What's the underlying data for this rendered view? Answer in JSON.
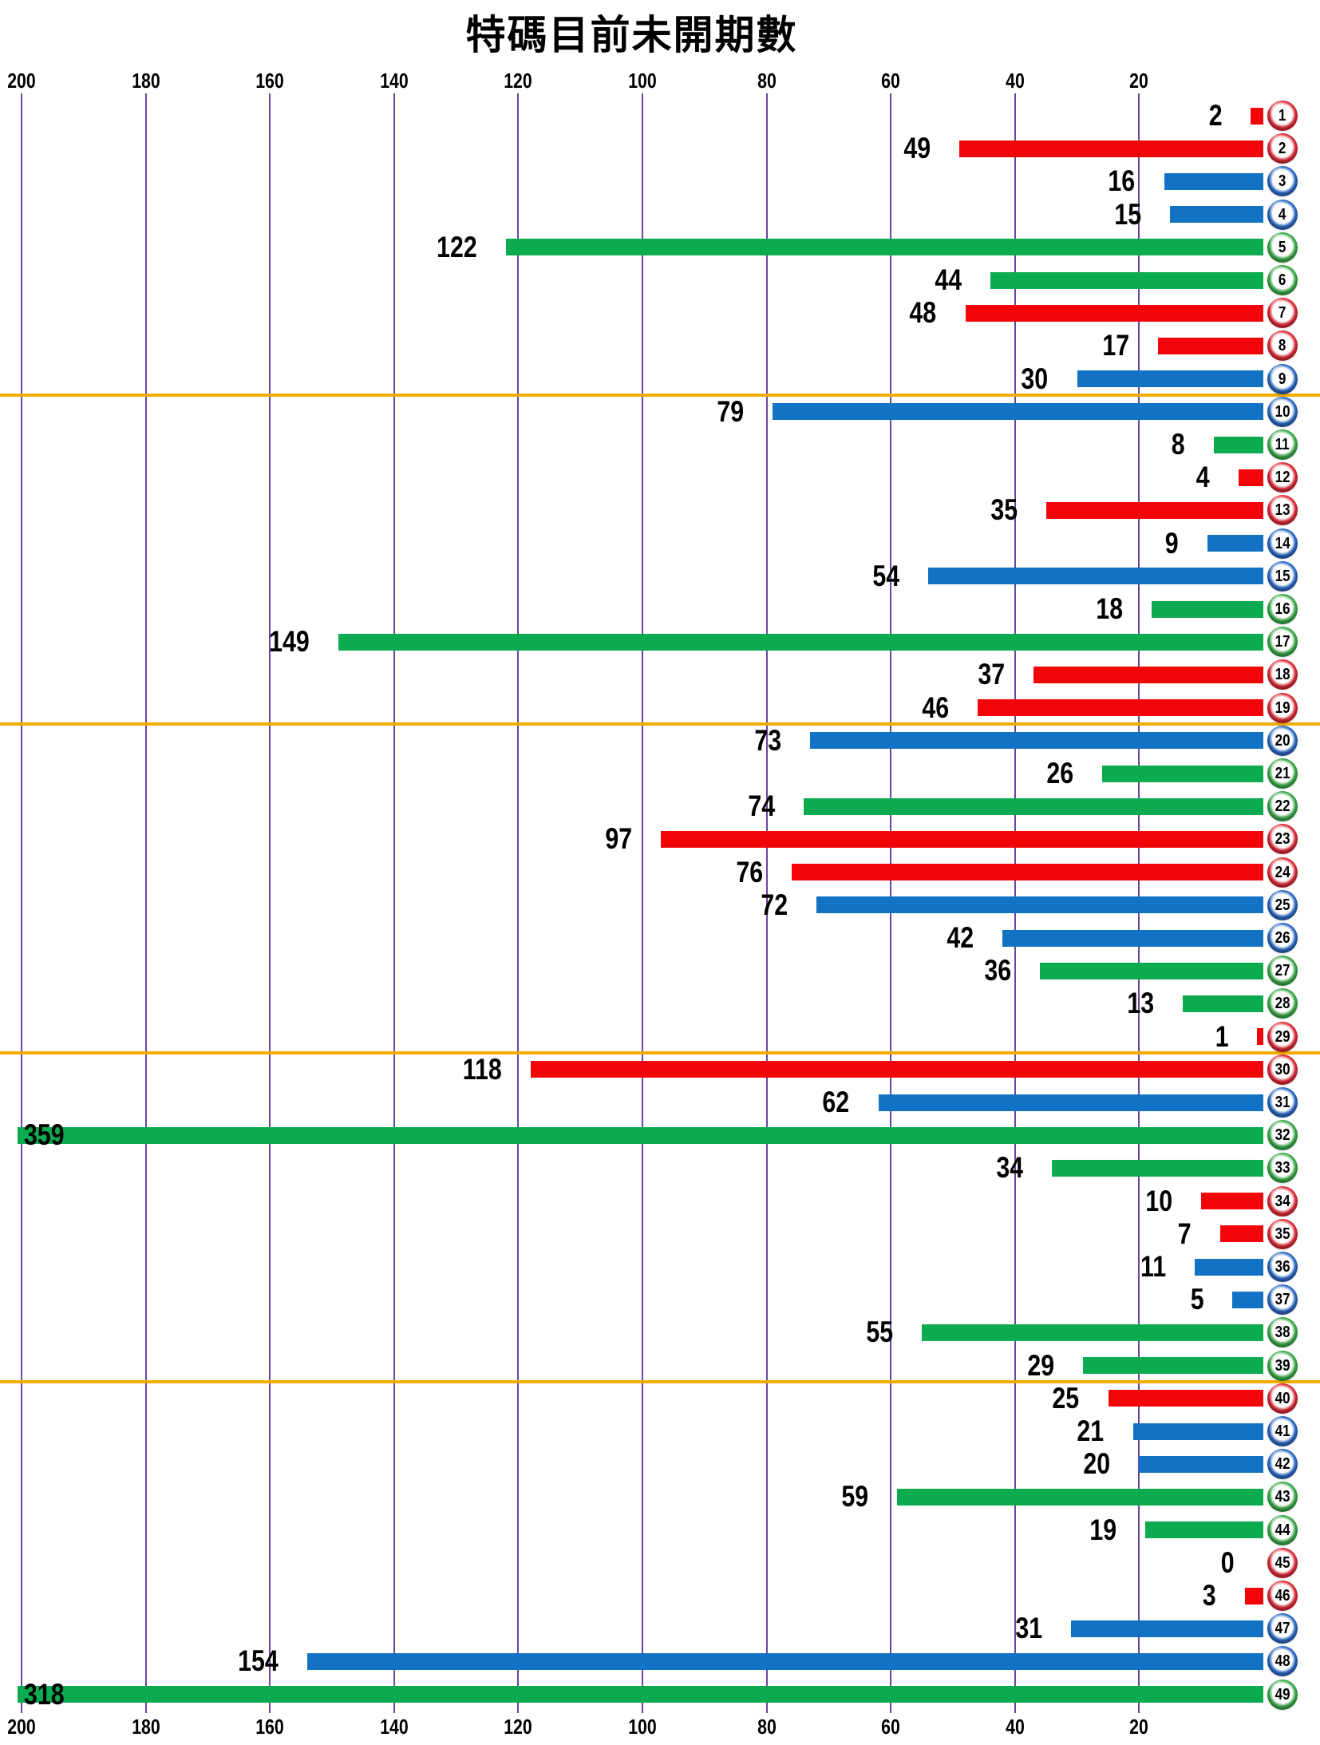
{
  "title": "特碼目前未開期數",
  "chart_data": {
    "type": "bar",
    "orientation": "horizontal",
    "anchor": "right",
    "title": "特碼目前未開期數",
    "xlabel": "",
    "ylabel": "",
    "value_axis": {
      "ticks": [
        200,
        180,
        160,
        140,
        120,
        100,
        80,
        60,
        40,
        20
      ],
      "range_visible": [
        0,
        200
      ],
      "positions": [
        "top",
        "bottom"
      ],
      "direction": "values-increase-right-to-left"
    },
    "categories": [
      1,
      2,
      3,
      4,
      5,
      6,
      7,
      8,
      9,
      10,
      11,
      12,
      13,
      14,
      15,
      16,
      17,
      18,
      19,
      20,
      21,
      22,
      23,
      24,
      25,
      26,
      27,
      28,
      29,
      30,
      31,
      32,
      33,
      34,
      35,
      36,
      37,
      38,
      39,
      40,
      41,
      42,
      43,
      44,
      45,
      46,
      47,
      48,
      49
    ],
    "values": [
      2,
      49,
      16,
      15,
      122,
      44,
      48,
      17,
      30,
      79,
      8,
      4,
      35,
      9,
      54,
      18,
      149,
      37,
      46,
      73,
      26,
      74,
      97,
      76,
      72,
      42,
      36,
      13,
      1,
      118,
      62,
      359,
      34,
      10,
      7,
      11,
      5,
      55,
      29,
      25,
      21,
      20,
      59,
      19,
      0,
      3,
      31,
      154,
      318
    ],
    "colors": [
      "red",
      "red",
      "blue",
      "blue",
      "green",
      "green",
      "red",
      "red",
      "blue",
      "blue",
      "green",
      "red",
      "red",
      "blue",
      "blue",
      "green",
      "green",
      "red",
      "red",
      "blue",
      "green",
      "green",
      "red",
      "red",
      "blue",
      "blue",
      "green",
      "green",
      "red",
      "red",
      "blue",
      "green",
      "green",
      "red",
      "red",
      "blue",
      "blue",
      "green",
      "green",
      "red",
      "blue",
      "blue",
      "green",
      "green",
      "red",
      "red",
      "blue",
      "blue",
      "green"
    ],
    "group_separators_after": [
      9,
      19,
      29,
      39
    ],
    "grid": true,
    "gridline_color": "#6B44A0",
    "separator_color": "#F0AC00",
    "palette": {
      "red": {
        "bar": "#F20509",
        "ball_main": "#E3303A",
        "ball_dark": "#9E0B1E"
      },
      "blue": {
        "bar": "#1273C4",
        "ball_main": "#2E6FC9",
        "ball_dark": "#163E8C"
      },
      "green": {
        "bar": "#0CAB4F",
        "ball_main": "#3FAE4C",
        "ball_dark": "#157F2E"
      }
    }
  }
}
